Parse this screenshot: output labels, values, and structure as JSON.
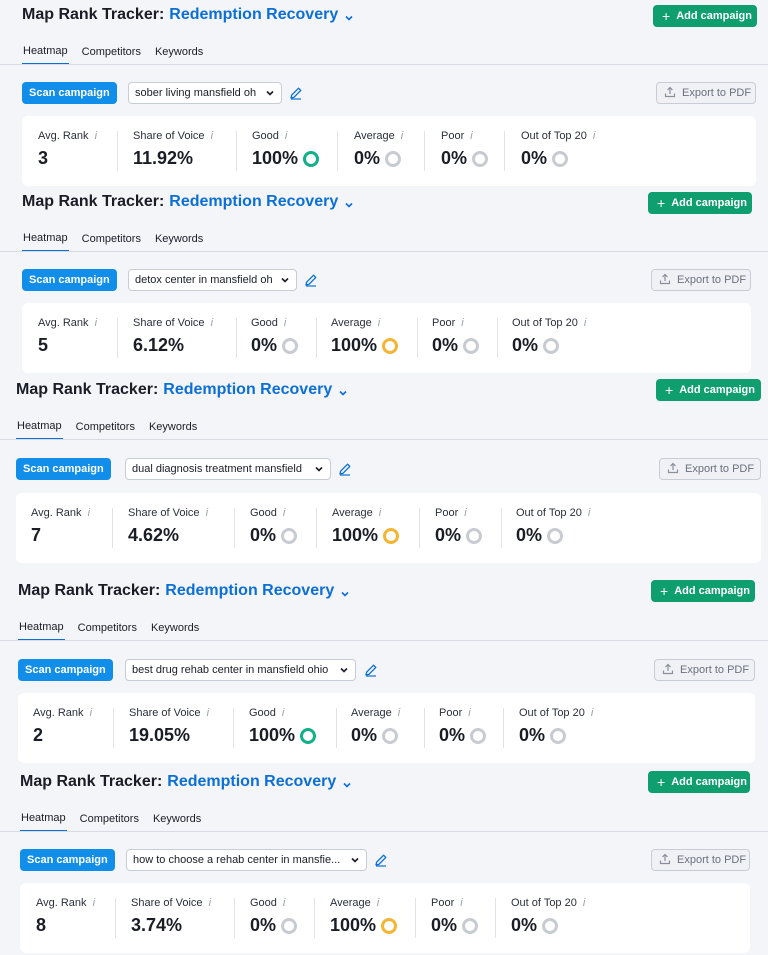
{
  "panels": [
    {
      "title": "Map Rank Tracker:",
      "campaign": "Redemption Recovery",
      "add_label": "Add campaign",
      "tabs": [
        "Heatmap",
        "Competitors",
        "Keywords"
      ],
      "scan_label": "Scan campaign",
      "keyword": "sober living mansfield oh",
      "export_label": "Export to PDF",
      "metrics": [
        {
          "label": "Avg. Rank",
          "value": "3",
          "ring": ""
        },
        {
          "label": "Share of Voice",
          "value": "11.92%",
          "ring": ""
        },
        {
          "label": "Good",
          "value": "100%",
          "ring": "green"
        },
        {
          "label": "Average",
          "value": "0%",
          "ring": "gray"
        },
        {
          "label": "Poor",
          "value": "0%",
          "ring": "gray"
        },
        {
          "label": "Out of Top 20",
          "value": "0%",
          "ring": "gray"
        }
      ]
    },
    {
      "title": "Map Rank Tracker:",
      "campaign": "Redemption Recovery",
      "add_label": "Add campaign",
      "tabs": [
        "Heatmap",
        "Competitors",
        "Keywords"
      ],
      "scan_label": "Scan campaign",
      "keyword": "detox center in mansfield oh",
      "export_label": "Export to PDF",
      "metrics": [
        {
          "label": "Avg. Rank",
          "value": "5",
          "ring": ""
        },
        {
          "label": "Share of Voice",
          "value": "6.12%",
          "ring": ""
        },
        {
          "label": "Good",
          "value": "0%",
          "ring": "gray"
        },
        {
          "label": "Average",
          "value": "100%",
          "ring": "yellow"
        },
        {
          "label": "Poor",
          "value": "0%",
          "ring": "gray"
        },
        {
          "label": "Out of Top 20",
          "value": "0%",
          "ring": "gray"
        }
      ]
    },
    {
      "title": "Map Rank Tracker:",
      "campaign": "Redemption Recovery",
      "add_label": "Add campaign",
      "tabs": [
        "Heatmap",
        "Competitors",
        "Keywords"
      ],
      "scan_label": "Scan campaign",
      "keyword": "dual diagnosis treatment mansfield",
      "export_label": "Export to PDF",
      "metrics": [
        {
          "label": "Avg. Rank",
          "value": "7",
          "ring": ""
        },
        {
          "label": "Share of Voice",
          "value": "4.62%",
          "ring": ""
        },
        {
          "label": "Good",
          "value": "0%",
          "ring": "gray"
        },
        {
          "label": "Average",
          "value": "100%",
          "ring": "yellow"
        },
        {
          "label": "Poor",
          "value": "0%",
          "ring": "gray"
        },
        {
          "label": "Out of Top 20",
          "value": "0%",
          "ring": "gray"
        }
      ]
    },
    {
      "title": "Map Rank Tracker:",
      "campaign": "Redemption Recovery",
      "add_label": "Add campaign",
      "tabs": [
        "Heatmap",
        "Competitors",
        "Keywords"
      ],
      "scan_label": "Scan campaign",
      "keyword": "best drug rehab center in mansfield ohio",
      "export_label": "Export to PDF",
      "metrics": [
        {
          "label": "Avg. Rank",
          "value": "2",
          "ring": ""
        },
        {
          "label": "Share of Voice",
          "value": "19.05%",
          "ring": ""
        },
        {
          "label": "Good",
          "value": "100%",
          "ring": "green"
        },
        {
          "label": "Average",
          "value": "0%",
          "ring": "gray"
        },
        {
          "label": "Poor",
          "value": "0%",
          "ring": "gray"
        },
        {
          "label": "Out of Top 20",
          "value": "0%",
          "ring": "gray"
        }
      ]
    },
    {
      "title": "Map Rank Tracker:",
      "campaign": "Redemption Recovery",
      "add_label": "Add campaign",
      "tabs": [
        "Heatmap",
        "Competitors",
        "Keywords"
      ],
      "scan_label": "Scan campaign",
      "keyword": "how to choose a rehab center in mansfie...",
      "export_label": "Export to PDF",
      "metrics": [
        {
          "label": "Avg. Rank",
          "value": "8",
          "ring": ""
        },
        {
          "label": "Share of Voice",
          "value": "3.74%",
          "ring": ""
        },
        {
          "label": "Good",
          "value": "0%",
          "ring": "gray"
        },
        {
          "label": "Average",
          "value": "100%",
          "ring": "yellow"
        },
        {
          "label": "Poor",
          "value": "0%",
          "ring": "gray"
        },
        {
          "label": "Out of Top 20",
          "value": "0%",
          "ring": "gray"
        }
      ]
    }
  ],
  "icons": {
    "dropdown": "chevron-down-icon",
    "add": "plus-icon",
    "edit": "pencil-icon",
    "export": "upload-icon",
    "info": "info-icon"
  },
  "colors": {
    "brand_blue": "#0b6fd6",
    "add_green": "#0f9e6e",
    "scan_blue": "#108ee9",
    "good_green": "#10b08a",
    "average_yellow": "#f4b534",
    "neutral_gray": "#c7cbd2"
  }
}
